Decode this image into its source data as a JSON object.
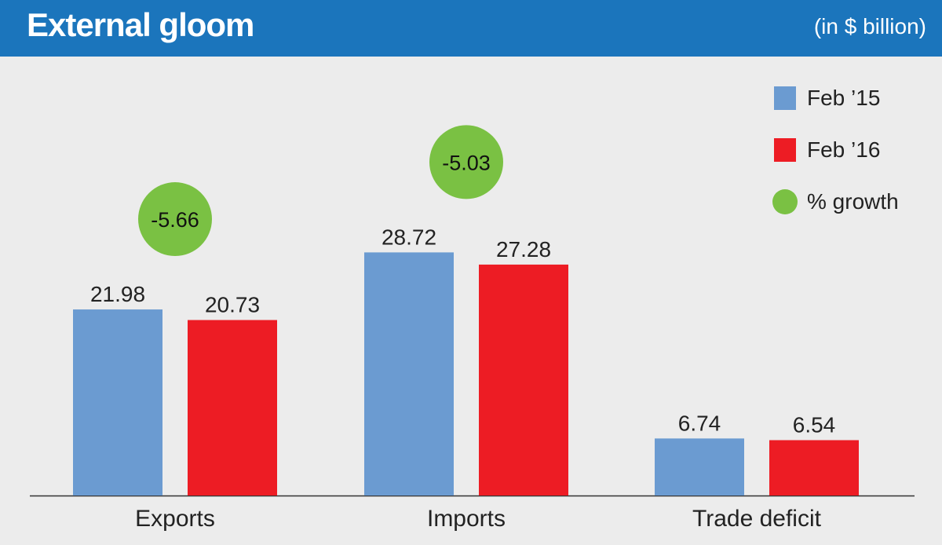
{
  "header": {
    "title": "External gloom",
    "unit": "(in $ billion)"
  },
  "colors": {
    "header_bg": "#1b75bc",
    "feb15": "#6b9bd1",
    "feb16": "#ed1c24",
    "growth": "#7ac143"
  },
  "legend": {
    "feb15": "Feb ’15",
    "feb16": "Feb ’16",
    "growth": "% growth"
  },
  "chart_data": {
    "type": "bar",
    "title": "External gloom",
    "subtitle": "(in $ billion)",
    "categories": [
      "Exports",
      "Imports",
      "Trade deficit"
    ],
    "series": [
      {
        "name": "Feb ’15",
        "values": [
          21.98,
          28.72,
          6.74
        ],
        "labels": [
          "21.98",
          "28.72",
          "6.74"
        ]
      },
      {
        "name": "Feb ’16",
        "values": [
          20.73,
          27.28,
          6.54
        ],
        "labels": [
          "20.73",
          "27.28",
          "6.54"
        ]
      }
    ],
    "growth": [
      {
        "category": "Exports",
        "value": -5.66,
        "label": "-5.66"
      },
      {
        "category": "Imports",
        "value": -5.03,
        "label": "-5.03"
      }
    ],
    "ylim": [
      0,
      35
    ],
    "grid": false,
    "legend_position": "top-right"
  }
}
